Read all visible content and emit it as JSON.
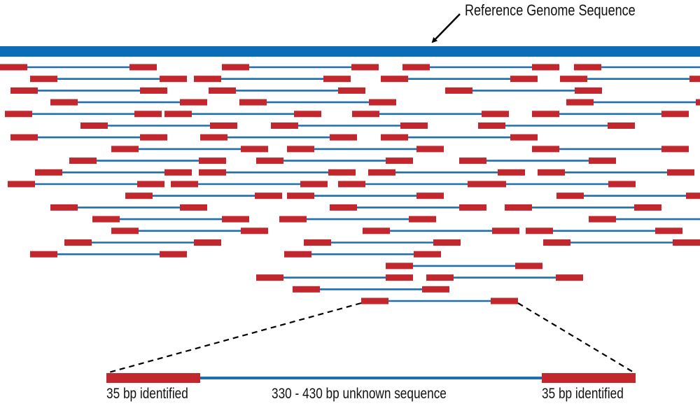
{
  "labels": {
    "reference": "Reference Genome Sequence",
    "left_end": "35 bp identified",
    "middle": "330 - 430 bp unknown sequence",
    "right_end": "35 bp identified"
  },
  "colors": {
    "reference_bar": "#0b6cb8",
    "read_end": "#c1272d",
    "read_insert": "#1f6fae",
    "annotation": "#000000"
  }
}
